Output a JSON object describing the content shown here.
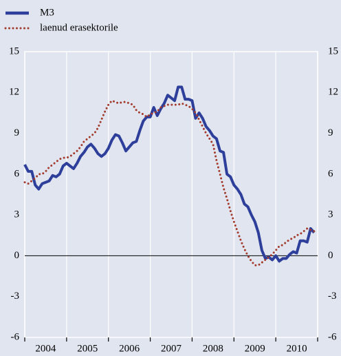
{
  "chart_data": {
    "type": "line",
    "x": [
      2004,
      2004.083,
      2004.167,
      2004.25,
      2004.333,
      2004.417,
      2004.5,
      2004.583,
      2004.667,
      2004.75,
      2004.833,
      2004.917,
      2005,
      2005.083,
      2005.167,
      2005.25,
      2005.333,
      2005.417,
      2005.5,
      2005.583,
      2005.667,
      2005.75,
      2005.833,
      2005.917,
      2006,
      2006.083,
      2006.167,
      2006.25,
      2006.333,
      2006.417,
      2006.5,
      2006.583,
      2006.667,
      2006.75,
      2006.833,
      2006.917,
      2007,
      2007.083,
      2007.167,
      2007.25,
      2007.333,
      2007.417,
      2007.5,
      2007.583,
      2007.667,
      2007.75,
      2007.833,
      2007.917,
      2008,
      2008.083,
      2008.167,
      2008.25,
      2008.333,
      2008.417,
      2008.5,
      2008.583,
      2008.667,
      2008.75,
      2008.833,
      2008.917,
      2009,
      2009.083,
      2009.167,
      2009.25,
      2009.333,
      2009.417,
      2009.5,
      2009.583,
      2009.667,
      2009.75,
      2009.833,
      2009.917,
      2010,
      2010.083,
      2010.167,
      2010.25,
      2010.333,
      2010.417,
      2010.5,
      2010.583,
      2010.667,
      2010.75,
      2010.833,
      2010.917
    ],
    "series": [
      {
        "name": "M3",
        "color": "#2d3f9b",
        "style": "solid",
        "values": [
          6.7,
          6.2,
          6.2,
          5.2,
          4.9,
          5.3,
          5.4,
          5.5,
          5.9,
          5.8,
          6.0,
          6.6,
          6.8,
          6.6,
          6.4,
          6.8,
          7.3,
          7.6,
          8.0,
          8.2,
          7.9,
          7.5,
          7.3,
          7.5,
          7.9,
          8.5,
          8.9,
          8.8,
          8.3,
          7.7,
          8.0,
          8.3,
          8.4,
          9.2,
          9.9,
          10.2,
          10.2,
          10.9,
          10.3,
          10.8,
          11.2,
          11.8,
          11.6,
          11.4,
          12.4,
          12.4,
          11.5,
          11.5,
          11.4,
          10.1,
          10.5,
          10.1,
          9.5,
          9.2,
          8.8,
          8.6,
          7.7,
          7.6,
          6.0,
          5.8,
          5.2,
          4.9,
          4.5,
          3.8,
          3.6,
          3.0,
          2.5,
          1.7,
          0.4,
          -0.2,
          -0.1,
          -0.3,
          0.0,
          -0.4,
          -0.2,
          -0.2,
          0.1,
          0.3,
          0.2,
          1.1,
          1.1,
          1.0,
          2.0,
          1.7
        ]
      },
      {
        "name": "laenud erasektorile",
        "color": "#a33a2c",
        "style": "dotted",
        "values": [
          5.4,
          5.3,
          5.5,
          5.7,
          6.0,
          6.0,
          6.2,
          6.5,
          6.7,
          6.9,
          7.1,
          7.2,
          7.2,
          7.3,
          7.5,
          7.7,
          8.0,
          8.4,
          8.6,
          8.8,
          9.0,
          9.4,
          10.0,
          10.6,
          11.1,
          11.4,
          11.3,
          11.2,
          11.3,
          11.3,
          11.2,
          11.1,
          10.7,
          10.5,
          10.4,
          10.2,
          10.4,
          10.5,
          10.6,
          10.9,
          11.0,
          11.1,
          11.1,
          11.1,
          11.1,
          11.2,
          11.1,
          11.0,
          10.8,
          10.5,
          10.0,
          9.5,
          9.0,
          8.6,
          8.2,
          7.0,
          6.0,
          5.0,
          4.2,
          3.3,
          2.5,
          1.8,
          1.1,
          0.5,
          0.0,
          -0.4,
          -0.7,
          -0.7,
          -0.5,
          -0.3,
          -0.1,
          0.1,
          0.4,
          0.7,
          0.8,
          1.0,
          1.2,
          1.3,
          1.5,
          1.6,
          1.8,
          2.0,
          1.9,
          1.8
        ]
      }
    ],
    "xlim": [
      2004,
      2011
    ],
    "xticks": [
      {
        "value": 2004.5,
        "label": "2004"
      },
      {
        "value": 2005.5,
        "label": "2005"
      },
      {
        "value": 2006.5,
        "label": "2006"
      },
      {
        "value": 2007.5,
        "label": "2007"
      },
      {
        "value": 2008.5,
        "label": "2008"
      },
      {
        "value": 2009.5,
        "label": "2009"
      },
      {
        "value": 2010.5,
        "label": "2010"
      }
    ],
    "xgrid": [
      2004,
      2005,
      2006,
      2007,
      2008,
      2009,
      2010,
      2011
    ],
    "ylim": [
      -6,
      15
    ],
    "yticks": [
      -6,
      -3,
      0,
      3,
      6,
      9,
      12,
      15
    ],
    "y2lim": [
      -6,
      15
    ],
    "y2ticks": [
      -6,
      -3,
      0,
      3,
      6,
      9,
      12,
      15
    ],
    "legend": "top-left"
  }
}
